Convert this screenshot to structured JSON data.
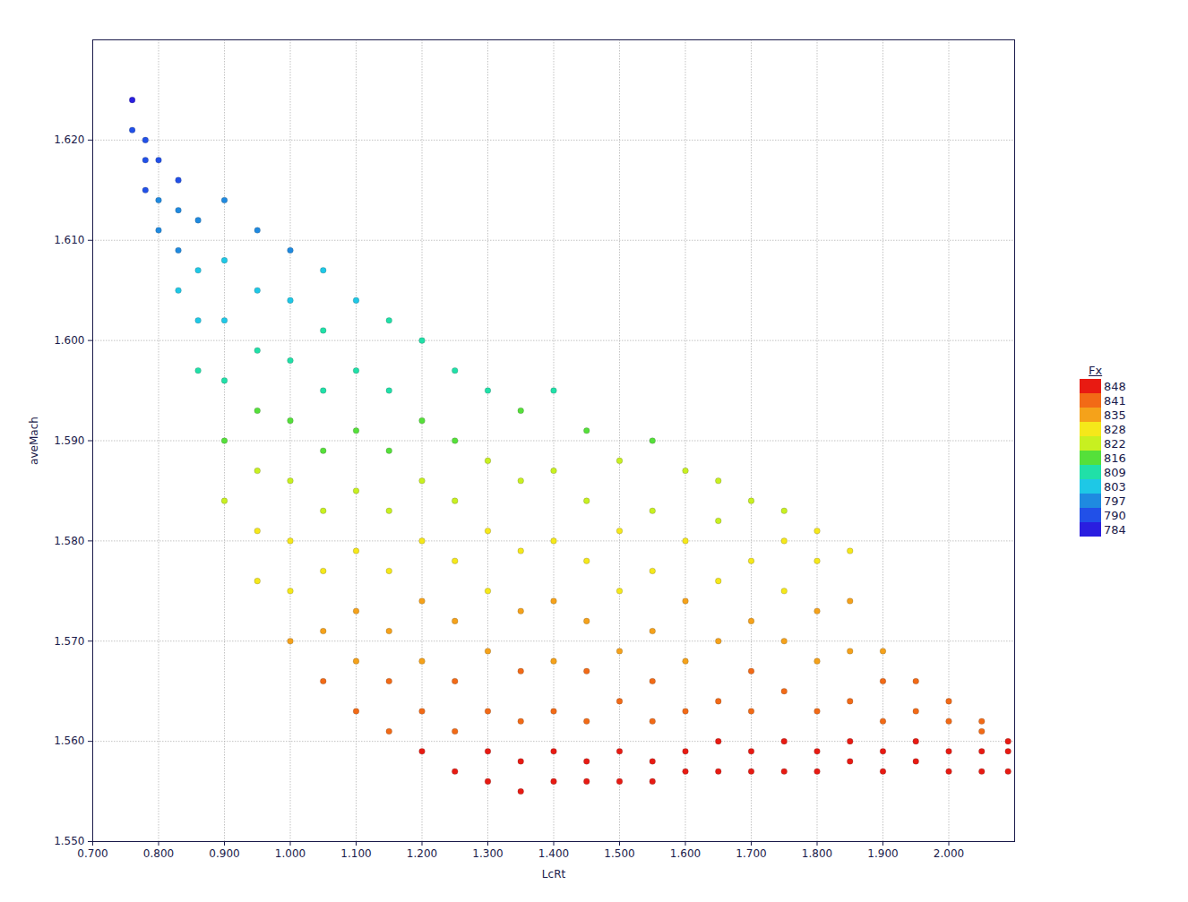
{
  "chart_data": {
    "type": "scatter",
    "x_label": "LcRt",
    "y_label": "aveMach",
    "xlim": [
      0.7,
      2.1
    ],
    "ylim": [
      1.55,
      1.63
    ],
    "xticks": [
      {
        "value": 0.7,
        "label": "0.700"
      },
      {
        "value": 0.8,
        "label": "0.800"
      },
      {
        "value": 0.9,
        "label": "0.900"
      },
      {
        "value": 1.0,
        "label": "1.000"
      },
      {
        "value": 1.1,
        "label": "1.100"
      },
      {
        "value": 1.2,
        "label": "1.200"
      },
      {
        "value": 1.3,
        "label": "1.300"
      },
      {
        "value": 1.4,
        "label": "1.400"
      },
      {
        "value": 1.5,
        "label": "1.500"
      },
      {
        "value": 1.6,
        "label": "1.600"
      },
      {
        "value": 1.7,
        "label": "1.700"
      },
      {
        "value": 1.8,
        "label": "1.800"
      },
      {
        "value": 1.9,
        "label": "1.900"
      },
      {
        "value": 2.0,
        "label": "2.000"
      }
    ],
    "yticks": [
      {
        "value": 1.55,
        "label": "1.550"
      },
      {
        "value": 1.56,
        "label": "1.560"
      },
      {
        "value": 1.57,
        "label": "1.570"
      },
      {
        "value": 1.58,
        "label": "1.580"
      },
      {
        "value": 1.59,
        "label": "1.590"
      },
      {
        "value": 1.6,
        "label": "1.600"
      },
      {
        "value": 1.61,
        "label": "1.610"
      },
      {
        "value": 1.62,
        "label": "1.620"
      }
    ],
    "grid": true,
    "colorbar": {
      "label": "Fx",
      "ticks": [
        848,
        841,
        835,
        828,
        822,
        816,
        809,
        803,
        797,
        790,
        784
      ],
      "colors": [
        "#e81a12",
        "#f26a16",
        "#f5a21a",
        "#f5e81a",
        "#c8f020",
        "#55e03a",
        "#20e0a8",
        "#1ec8e6",
        "#1f8ae0",
        "#2150e8",
        "#2a1ee0"
      ]
    },
    "x": [
      0.76,
      0.76,
      0.78,
      0.78,
      0.78,
      0.8,
      0.8,
      0.8,
      0.83,
      0.83,
      0.83,
      0.83,
      0.86,
      0.86,
      0.86,
      0.86,
      0.9,
      0.9,
      0.9,
      0.9,
      0.9,
      0.9,
      0.95,
      0.95,
      0.95,
      0.95,
      0.95,
      0.95,
      0.95,
      1.0,
      1.0,
      1.0,
      1.0,
      1.0,
      1.0,
      1.0,
      1.0,
      1.05,
      1.05,
      1.05,
      1.05,
      1.05,
      1.05,
      1.05,
      1.05,
      1.1,
      1.1,
      1.1,
      1.1,
      1.1,
      1.1,
      1.1,
      1.1,
      1.15,
      1.15,
      1.15,
      1.15,
      1.15,
      1.15,
      1.15,
      1.15,
      1.2,
      1.2,
      1.2,
      1.2,
      1.2,
      1.2,
      1.2,
      1.2,
      1.25,
      1.25,
      1.25,
      1.25,
      1.25,
      1.25,
      1.25,
      1.25,
      1.3,
      1.3,
      1.3,
      1.3,
      1.3,
      1.3,
      1.3,
      1.3,
      1.35,
      1.35,
      1.35,
      1.35,
      1.35,
      1.35,
      1.35,
      1.35,
      1.4,
      1.4,
      1.4,
      1.4,
      1.4,
      1.4,
      1.4,
      1.4,
      1.45,
      1.45,
      1.45,
      1.45,
      1.45,
      1.45,
      1.45,
      1.45,
      1.5,
      1.5,
      1.5,
      1.5,
      1.5,
      1.5,
      1.5,
      1.55,
      1.55,
      1.55,
      1.55,
      1.55,
      1.55,
      1.55,
      1.55,
      1.6,
      1.6,
      1.6,
      1.6,
      1.6,
      1.6,
      1.6,
      1.65,
      1.65,
      1.65,
      1.65,
      1.65,
      1.65,
      1.65,
      1.7,
      1.7,
      1.7,
      1.7,
      1.7,
      1.7,
      1.7,
      1.75,
      1.75,
      1.75,
      1.75,
      1.75,
      1.75,
      1.75,
      1.8,
      1.8,
      1.8,
      1.8,
      1.8,
      1.8,
      1.8,
      1.85,
      1.85,
      1.85,
      1.85,
      1.85,
      1.85,
      1.9,
      1.9,
      1.9,
      1.9,
      1.9,
      1.95,
      1.95,
      1.95,
      1.95,
      2.0,
      2.0,
      2.0,
      2.0,
      2.05,
      2.05,
      2.05,
      2.05,
      2.09,
      2.09,
      2.09
    ],
    "y": [
      1.624,
      1.621,
      1.618,
      1.62,
      1.615,
      1.611,
      1.614,
      1.618,
      1.605,
      1.609,
      1.613,
      1.616,
      1.597,
      1.602,
      1.607,
      1.612,
      1.584,
      1.59,
      1.596,
      1.602,
      1.608,
      1.614,
      1.576,
      1.581,
      1.587,
      1.593,
      1.599,
      1.605,
      1.611,
      1.57,
      1.575,
      1.58,
      1.586,
      1.592,
      1.598,
      1.604,
      1.609,
      1.566,
      1.571,
      1.577,
      1.583,
      1.589,
      1.595,
      1.601,
      1.607,
      1.563,
      1.568,
      1.573,
      1.579,
      1.585,
      1.591,
      1.597,
      1.604,
      1.561,
      1.566,
      1.571,
      1.577,
      1.583,
      1.589,
      1.595,
      1.602,
      1.559,
      1.563,
      1.568,
      1.574,
      1.58,
      1.586,
      1.592,
      1.6,
      1.557,
      1.561,
      1.566,
      1.572,
      1.578,
      1.584,
      1.59,
      1.597,
      1.556,
      1.559,
      1.563,
      1.569,
      1.575,
      1.581,
      1.588,
      1.595,
      1.555,
      1.558,
      1.562,
      1.567,
      1.573,
      1.579,
      1.586,
      1.593,
      1.556,
      1.559,
      1.563,
      1.568,
      1.574,
      1.58,
      1.587,
      1.595,
      1.556,
      1.558,
      1.562,
      1.567,
      1.572,
      1.578,
      1.584,
      1.591,
      1.556,
      1.559,
      1.564,
      1.569,
      1.575,
      1.581,
      1.588,
      1.556,
      1.558,
      1.562,
      1.566,
      1.571,
      1.577,
      1.583,
      1.59,
      1.557,
      1.559,
      1.563,
      1.568,
      1.574,
      1.58,
      1.587,
      1.557,
      1.56,
      1.564,
      1.57,
      1.576,
      1.582,
      1.586,
      1.557,
      1.559,
      1.563,
      1.567,
      1.572,
      1.578,
      1.584,
      1.557,
      1.56,
      1.565,
      1.57,
      1.575,
      1.58,
      1.583,
      1.557,
      1.559,
      1.563,
      1.568,
      1.573,
      1.578,
      1.581,
      1.558,
      1.56,
      1.564,
      1.569,
      1.574,
      1.579,
      1.557,
      1.559,
      1.562,
      1.566,
      1.569,
      1.558,
      1.56,
      1.563,
      1.566,
      1.557,
      1.559,
      1.562,
      1.564,
      1.557,
      1.559,
      1.561,
      1.562,
      1.557,
      1.559,
      1.56
    ],
    "fx": [
      785,
      788,
      790,
      788,
      793,
      797,
      794,
      790,
      802,
      799,
      795,
      792,
      810,
      805,
      801,
      796,
      822,
      817,
      811,
      805,
      800,
      794,
      830,
      825,
      819,
      814,
      808,
      803,
      797,
      835,
      831,
      826,
      821,
      815,
      810,
      804,
      799,
      839,
      834,
      829,
      823,
      818,
      812,
      807,
      801,
      842,
      837,
      833,
      827,
      822,
      816,
      811,
      805,
      844,
      839,
      834,
      829,
      823,
      818,
      812,
      806,
      846,
      842,
      837,
      832,
      826,
      821,
      815,
      808,
      847,
      844,
      839,
      833,
      828,
      822,
      817,
      810,
      848,
      846,
      842,
      836,
      831,
      825,
      819,
      812,
      848,
      847,
      843,
      838,
      832,
      827,
      821,
      814,
      848,
      846,
      842,
      837,
      832,
      826,
      820,
      812,
      848,
      847,
      843,
      838,
      834,
      828,
      822,
      816,
      848,
      846,
      841,
      837,
      831,
      826,
      819,
      848,
      847,
      843,
      839,
      835,
      829,
      824,
      817,
      848,
      846,
      842,
      837,
      832,
      826,
      820,
      847,
      845,
      841,
      836,
      830,
      824,
      821,
      847,
      846,
      842,
      838,
      834,
      828,
      823,
      847,
      845,
      840,
      836,
      831,
      826,
      823,
      847,
      846,
      842,
      837,
      833,
      828,
      825,
      847,
      845,
      841,
      836,
      832,
      827,
      847,
      846,
      843,
      839,
      836,
      847,
      845,
      842,
      839,
      847,
      846,
      843,
      841,
      847,
      846,
      844,
      843,
      847,
      846,
      845
    ]
  }
}
